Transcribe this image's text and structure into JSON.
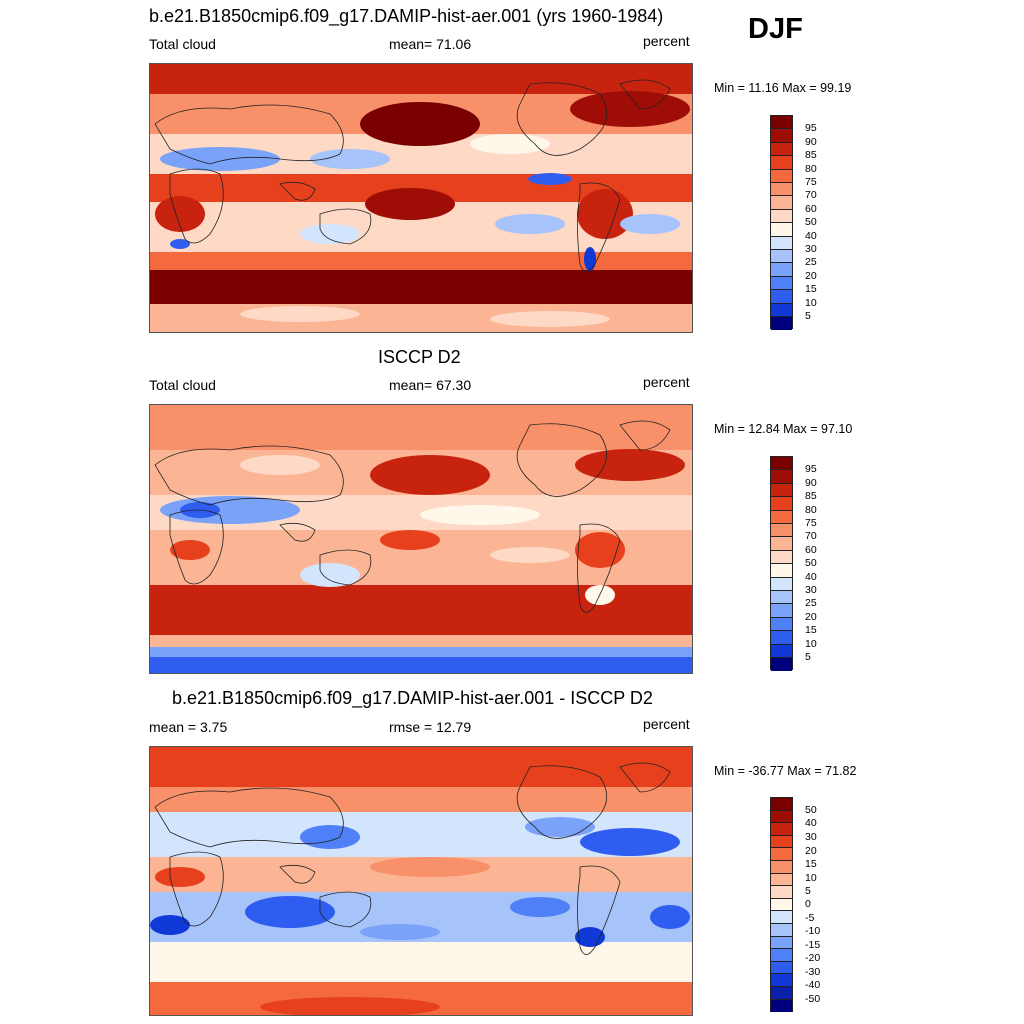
{
  "season": "DJF",
  "colors": {
    "positive_scale": [
      "#00007f",
      "#0a1faa",
      "#1039d8",
      "#2e5df0",
      "#5080f7",
      "#7aa2f8",
      "#a6c3fa",
      "#d3e4fd",
      "#fff8ea",
      "#fdd9c6",
      "#fbb595",
      "#f8906a",
      "#f46a3e",
      "#e6411c",
      "#c8230e",
      "#9e0e06",
      "#7a0000"
    ],
    "positive_scale_approx": [
      "#00007f",
      "#0a1faa",
      "#1039d8",
      "#2e5df0",
      "#5080f7",
      "#7aa2f8",
      "#a6c3fa",
      "#d3e4fd",
      "#fff8ea",
      "#fdd9c6",
      "#fbb595",
      "#f8906a",
      "#e6411c",
      "#c8230e",
      "#7a0000"
    ],
    "diff_scale": [
      "#00007f",
      "#0a1faa",
      "#1039d8",
      "#2e5df0",
      "#5080f7",
      "#7aa2f8",
      "#a6c3fa",
      "#d3e4fd",
      "#fff8ea",
      "#fdd9c6",
      "#fbb595",
      "#f8906a",
      "#f46a3e",
      "#e6411c",
      "#c8230e",
      "#9e0e06",
      "#7a0000"
    ]
  },
  "panels": [
    {
      "title": "b.e21.B1850cmip6.f09_g17.DAMIP-hist-aer.001 (yrs 1960-1984)",
      "left_label": "Total cloud",
      "center_label": "mean=  71.06",
      "units": "percent",
      "minmax": "Min =  11.16 Max =  99.19",
      "colorbar_labels": [
        "95",
        "90",
        "85",
        "80",
        "75",
        "70",
        "60",
        "50",
        "40",
        "30",
        "25",
        "20",
        "15",
        "10",
        "5"
      ]
    },
    {
      "title": "ISCCP D2",
      "left_label": "Total cloud",
      "center_label": "mean=  67.30",
      "units": "percent",
      "minmax": "Min =  12.84 Max =  97.10",
      "colorbar_labels": [
        "95",
        "90",
        "85",
        "80",
        "75",
        "70",
        "60",
        "50",
        "40",
        "30",
        "25",
        "20",
        "15",
        "10",
        "5"
      ]
    },
    {
      "title": "b.e21.B1850cmip6.f09_g17.DAMIP-hist-aer.001 - ISCCP D2",
      "left_label": "mean =   3.75",
      "center_label": "rmse =  12.79",
      "units": "percent",
      "minmax": "Min = -36.77 Max =  71.82",
      "colorbar_labels": [
        "50",
        "40",
        "30",
        "20",
        "15",
        "10",
        "5",
        "0",
        "-5",
        "-10",
        "-15",
        "-20",
        "-30",
        "-40",
        "-50"
      ]
    }
  ]
}
